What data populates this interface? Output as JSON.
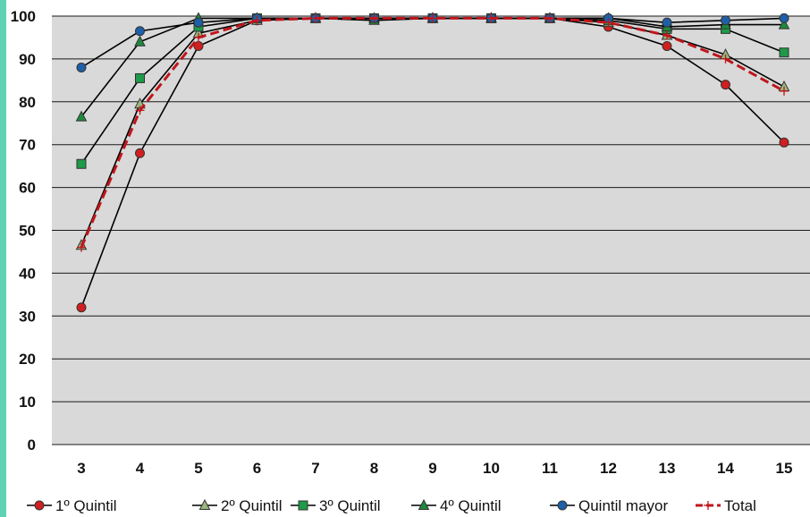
{
  "chart_data": {
    "type": "line",
    "title": "",
    "xlabel": "",
    "ylabel": "",
    "x": [
      3,
      4,
      5,
      6,
      7,
      8,
      9,
      10,
      11,
      12,
      13,
      14,
      15
    ],
    "x_tick_labels": [
      "3",
      "4",
      "5",
      "6",
      "7",
      "8",
      "9",
      "10",
      "11",
      "12",
      "13",
      "14",
      "15"
    ],
    "y_tick_labels": [
      "0",
      "10",
      "20",
      "30",
      "40",
      "50",
      "60",
      "70",
      "80",
      "90",
      "100"
    ],
    "ylim": [
      0,
      100
    ],
    "grid": "horizontal",
    "plot_background": "#d9d9d9",
    "legend_position": "bottom",
    "series": [
      {
        "name": "1º Quintil",
        "marker": "circle",
        "color": "#d11f1f",
        "line_color": "#000000",
        "dashed": false,
        "values": [
          32,
          68,
          93,
          99,
          99.5,
          99.5,
          99.5,
          99.5,
          99.5,
          97.5,
          93,
          84,
          70.5
        ]
      },
      {
        "name": "2º Quintil",
        "marker": "triangle",
        "color": "#9ab87e",
        "line_color": "#000000",
        "dashed": false,
        "values": [
          46.5,
          79.5,
          96,
          99,
          99.5,
          99.5,
          99.5,
          99.5,
          99.5,
          98.5,
          95.5,
          91,
          83.5
        ]
      },
      {
        "name": "3º Quintil",
        "marker": "square",
        "color": "#1e9a48",
        "line_color": "#000000",
        "dashed": false,
        "values": [
          65.5,
          85.5,
          97.5,
          99.5,
          99.5,
          99.5,
          99.5,
          99.5,
          99.5,
          99,
          97,
          97,
          91.5
        ]
      },
      {
        "name": "4º Quintil",
        "marker": "triangle",
        "color": "#1e8a3c",
        "line_color": "#000000",
        "dashed": false,
        "values": [
          76.5,
          94,
          99.5,
          99.5,
          99.5,
          99,
          99.5,
          99.5,
          99.5,
          99.5,
          97.5,
          98,
          98
        ]
      },
      {
        "name": "Quintil mayor",
        "marker": "circle",
        "color": "#1f5fa8",
        "line_color": "#000000",
        "dashed": false,
        "values": [
          88,
          96.5,
          98.5,
          99.5,
          99.5,
          99.5,
          99.5,
          99.5,
          99.5,
          99.5,
          98.5,
          99,
          99.5
        ]
      },
      {
        "name": "Total",
        "marker": "plus",
        "color": "#c0161c",
        "line_color": "#c0161c",
        "dashed": true,
        "values": [
          46,
          78,
          95,
          99,
          99.5,
          99.5,
          99.5,
          99.5,
          99.5,
          98.5,
          95.5,
          90,
          82.5
        ]
      }
    ]
  }
}
